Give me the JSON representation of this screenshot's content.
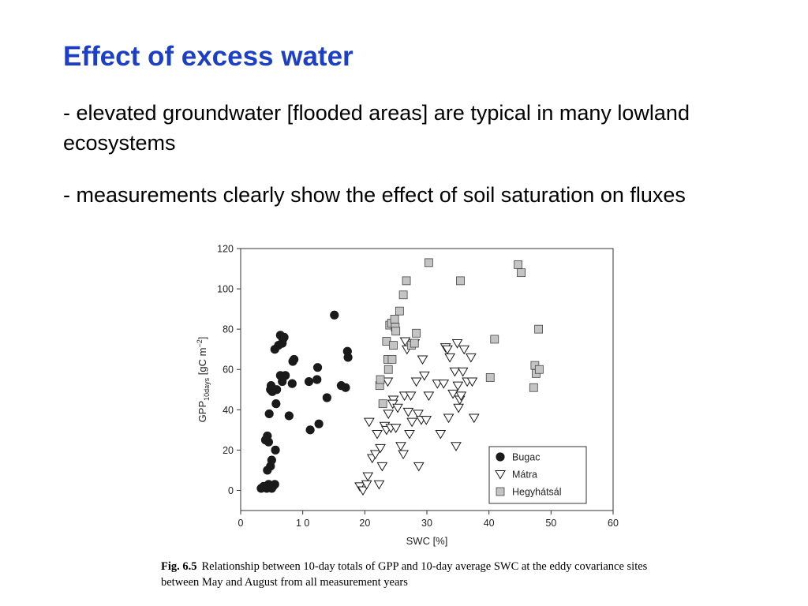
{
  "slide": {
    "title": "Effect of excess water",
    "bullets": [
      "- elevated groundwater [flooded areas] are typical in many lowland ecosystems",
      "- measurements clearly show the effect of soil saturation on fluxes"
    ],
    "caption_label": "Fig. 6.5",
    "caption_text": "Relationship between 10-day totals of GPP and 10-day average SWC at the eddy covariance sites between May and August from all measurement years"
  },
  "chart_data": {
    "type": "scatter",
    "xlabel": "SWC [%]",
    "ylabel": "GPP10days [gC m−2]",
    "xlim": [
      0,
      60
    ],
    "ylim": [
      -10,
      120
    ],
    "xticks": [
      0,
      10,
      20,
      30,
      40,
      50,
      60
    ],
    "xtick_labels": [
      "0",
      "1 0",
      "20",
      "30",
      "40",
      "50",
      "60"
    ],
    "yticks": [
      0,
      20,
      40,
      60,
      80,
      100,
      120
    ],
    "grid": false,
    "legend_position": "bottom-right",
    "series": [
      {
        "name": "Bugac",
        "marker": "filled-circle",
        "color": "#1a1a1a",
        "points": [
          [
            3.3,
            1
          ],
          [
            3.7,
            2
          ],
          [
            4.2,
            1
          ],
          [
            4.5,
            3
          ],
          [
            5,
            1
          ],
          [
            5.2,
            2
          ],
          [
            5.5,
            3
          ],
          [
            4.8,
            12
          ],
          [
            5,
            15
          ],
          [
            4.3,
            10
          ],
          [
            5.6,
            20
          ],
          [
            4,
            25
          ],
          [
            4.3,
            27
          ],
          [
            4.5,
            24
          ],
          [
            4.6,
            38
          ],
          [
            5.7,
            43
          ],
          [
            4.8,
            50
          ],
          [
            4.9,
            52
          ],
          [
            5.1,
            49
          ],
          [
            5.8,
            50
          ],
          [
            5.5,
            70
          ],
          [
            6.1,
            72
          ],
          [
            6.4,
            77
          ],
          [
            6.8,
            75
          ],
          [
            6.7,
            73
          ],
          [
            7,
            76
          ],
          [
            6.4,
            57
          ],
          [
            6.8,
            56
          ],
          [
            7.2,
            57
          ],
          [
            6.7,
            54
          ],
          [
            7.8,
            37
          ],
          [
            8.3,
            53
          ],
          [
            8.6,
            65
          ],
          [
            8.4,
            64
          ],
          [
            11.2,
            30
          ],
          [
            11,
            54
          ],
          [
            12.4,
            61
          ],
          [
            12.3,
            55
          ],
          [
            12.6,
            33
          ],
          [
            13.9,
            46
          ],
          [
            15.1,
            87
          ],
          [
            16.2,
            52
          ],
          [
            16.9,
            51
          ],
          [
            17.2,
            69
          ],
          [
            17.3,
            66
          ]
        ]
      },
      {
        "name": "Mátra",
        "marker": "open-triangle-down",
        "color": "#1a1a1a",
        "points": [
          [
            19.2,
            2
          ],
          [
            19.7,
            0
          ],
          [
            20.3,
            3
          ],
          [
            20.5,
            7
          ],
          [
            20.7,
            34
          ],
          [
            21.2,
            16
          ],
          [
            21.7,
            18
          ],
          [
            22,
            28
          ],
          [
            22.3,
            3
          ],
          [
            22.5,
            21
          ],
          [
            22.8,
            12
          ],
          [
            23.2,
            32
          ],
          [
            23.5,
            30
          ],
          [
            23.8,
            38
          ],
          [
            23.7,
            54
          ],
          [
            24.2,
            31
          ],
          [
            24.6,
            45
          ],
          [
            24.5,
            43
          ],
          [
            25,
            31
          ],
          [
            25.3,
            41
          ],
          [
            25.8,
            22
          ],
          [
            26.2,
            18
          ],
          [
            26.4,
            47
          ],
          [
            26.5,
            74
          ],
          [
            26.8,
            70
          ],
          [
            27,
            39
          ],
          [
            27.2,
            28
          ],
          [
            27.4,
            47
          ],
          [
            27.6,
            34
          ],
          [
            28,
            73
          ],
          [
            28.3,
            54
          ],
          [
            28.6,
            38
          ],
          [
            28.7,
            12
          ],
          [
            29.1,
            35
          ],
          [
            29.3,
            65
          ],
          [
            29.6,
            57
          ],
          [
            29.9,
            35
          ],
          [
            30.3,
            47
          ],
          [
            31.7,
            53
          ],
          [
            32.2,
            28
          ],
          [
            32.7,
            53
          ],
          [
            33,
            71
          ],
          [
            33.3,
            70
          ],
          [
            33.5,
            36
          ],
          [
            33.7,
            66
          ],
          [
            34.2,
            48
          ],
          [
            34.5,
            59
          ],
          [
            34.7,
            22
          ],
          [
            34.9,
            73
          ],
          [
            35,
            52
          ],
          [
            35.1,
            41
          ],
          [
            35.3,
            45
          ],
          [
            35.5,
            47
          ],
          [
            35.8,
            59
          ],
          [
            36,
            70
          ],
          [
            36.5,
            54
          ],
          [
            37.1,
            66
          ],
          [
            37.3,
            54
          ],
          [
            37.6,
            36
          ]
        ]
      },
      {
        "name": "Hegyhátsál",
        "marker": "filled-square",
        "color": "#c4c4c4",
        "points": [
          [
            22.4,
            52
          ],
          [
            22.5,
            55
          ],
          [
            22.9,
            43
          ],
          [
            23.5,
            74
          ],
          [
            23.7,
            65
          ],
          [
            23.8,
            60
          ],
          [
            24,
            82
          ],
          [
            24.3,
            83
          ],
          [
            24.4,
            65
          ],
          [
            24.6,
            72
          ],
          [
            24.8,
            85
          ],
          [
            24.9,
            81
          ],
          [
            25,
            79
          ],
          [
            25.6,
            89
          ],
          [
            26.2,
            97
          ],
          [
            26.7,
            104
          ],
          [
            27.5,
            72
          ],
          [
            28,
            73
          ],
          [
            28.3,
            78
          ],
          [
            30.3,
            113
          ],
          [
            35.4,
            104
          ],
          [
            40.2,
            56
          ],
          [
            40.9,
            75
          ],
          [
            44.7,
            112
          ],
          [
            45.2,
            108
          ],
          [
            47.2,
            51
          ],
          [
            47.4,
            62
          ],
          [
            47.6,
            58
          ],
          [
            48,
            80
          ],
          [
            48.1,
            60
          ]
        ]
      }
    ]
  }
}
